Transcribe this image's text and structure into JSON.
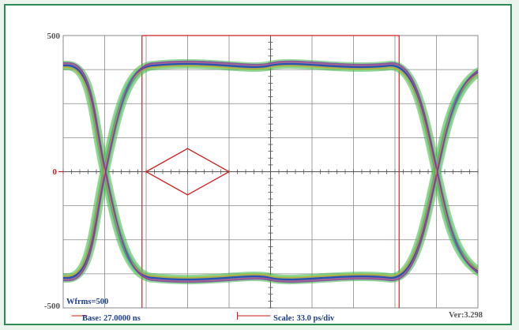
{
  "chart_data": {
    "type": "eye diagram",
    "y_axis": {
      "top_label": "500",
      "zero_label": "0",
      "bottom_label": "-500",
      "ylim": [
        -500,
        500
      ]
    },
    "x_axis": {
      "scale_label": "Scale: 33.0 ps/div",
      "divisions": 10
    },
    "eye_levels": {
      "high": 390,
      "low": -390
    },
    "crossings_x_div": [
      1.0,
      9.0
    ],
    "mask_polygon": [
      [
        2.0,
        0
      ],
      [
        3.0,
        85
      ],
      [
        4.0,
        0
      ],
      [
        3.0,
        -85
      ]
    ],
    "annotations": {
      "waveforms": "Wfrms=500",
      "base": "Base: 27.0000 ns",
      "version": "Ver:3.298"
    }
  },
  "colors": {
    "frame": "#2e8b57",
    "grid": "#8a8a8a",
    "markers": "#cc2222",
    "trace_outer": "#3cb44b",
    "trace_mid": "#1aa0c8",
    "trace_inner": "#2a3fb0"
  }
}
